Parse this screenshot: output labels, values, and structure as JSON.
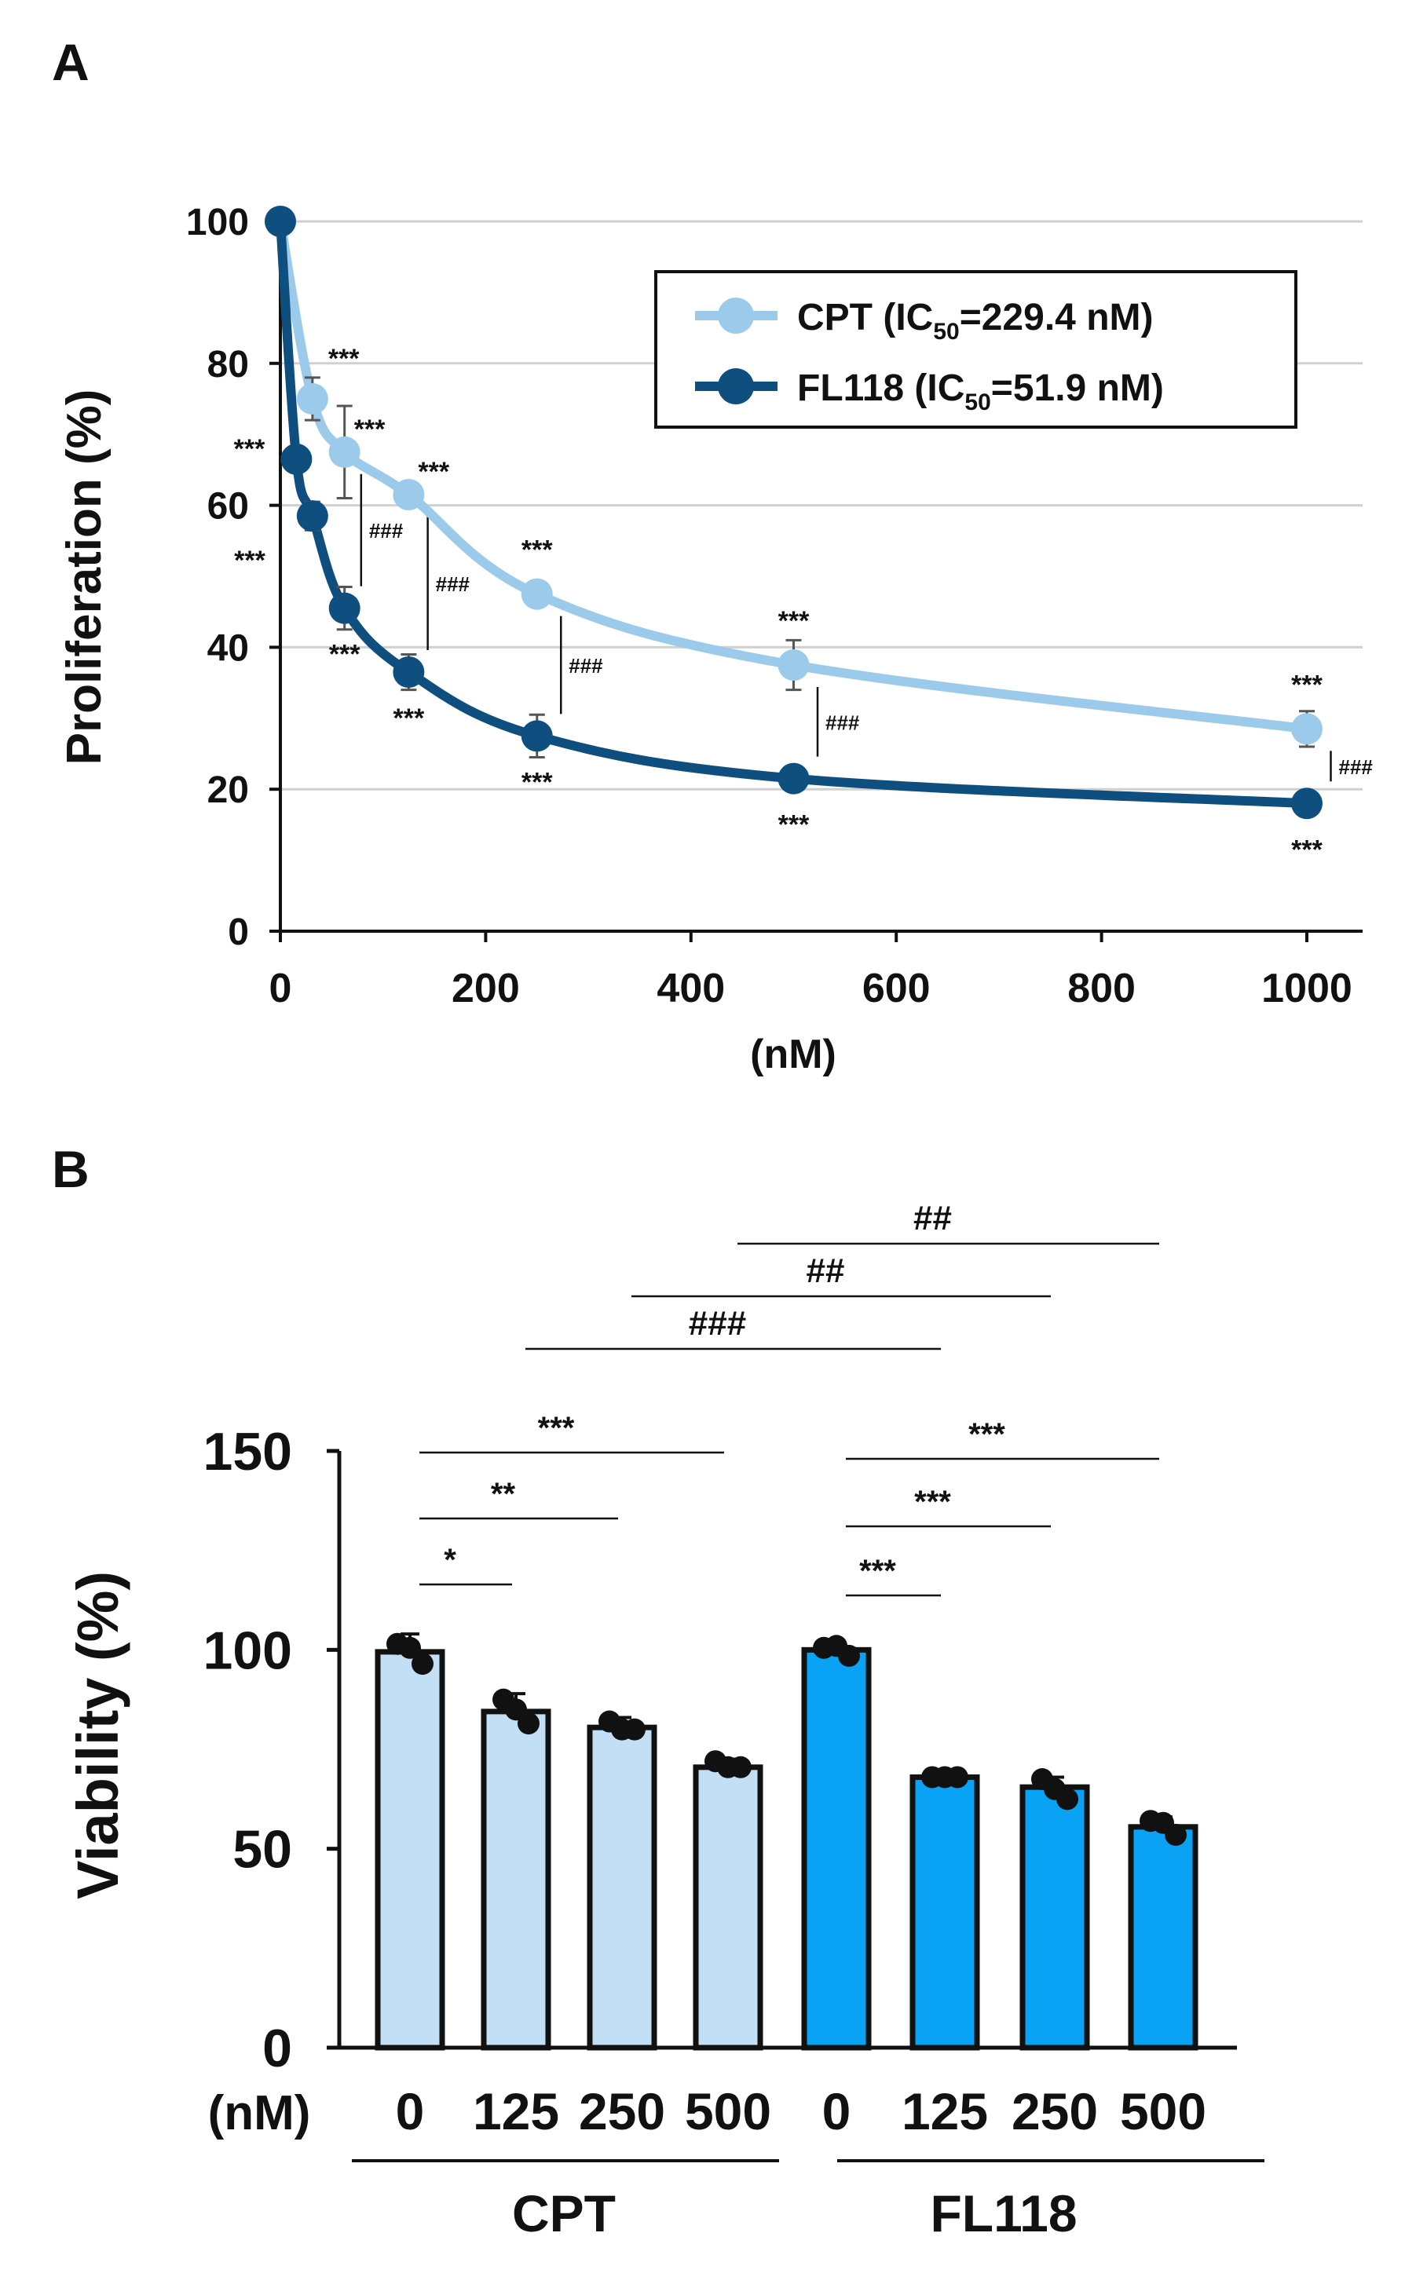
{
  "chart_data": [
    {
      "panel": "A",
      "type": "line",
      "ylabel": "Proliferation  (%)",
      "xlabel": "(nM)",
      "xlim": [
        0,
        1000
      ],
      "ylim": [
        0,
        100
      ],
      "xticks": [
        0,
        200,
        400,
        600,
        800,
        1000
      ],
      "yticks": [
        0,
        20,
        40,
        60,
        80,
        100
      ],
      "grid": true,
      "legend_position": "top-right",
      "series": [
        {
          "name": "CPT",
          "legend_name": "CPT",
          "legend_ic50": "229.4 nM",
          "color": "#9ccaea",
          "x": [
            0,
            31.25,
            62.5,
            125,
            250,
            500,
            1000
          ],
          "y": [
            100,
            75,
            67.5,
            61.5,
            47.5,
            37.5,
            28.5
          ],
          "err": [
            0,
            3,
            6.5,
            0,
            1.5,
            3.5,
            2.5
          ],
          "stars": [
            "",
            "***",
            "***",
            "***",
            "***",
            "***",
            "***"
          ]
        },
        {
          "name": "FL118",
          "legend_name": "FL118",
          "legend_ic50": "51.9 nM",
          "color": "#0f4f7f",
          "x": [
            0,
            15.6,
            31.25,
            62.5,
            125,
            250,
            500,
            1000
          ],
          "y": [
            100,
            66.5,
            58.5,
            45.5,
            36.5,
            27.5,
            21.5,
            18
          ],
          "err": [
            0,
            0,
            2,
            3,
            2.5,
            3,
            0,
            0
          ],
          "stars": [
            "",
            "***",
            "***",
            "***",
            "***",
            "***",
            "***",
            "***"
          ]
        }
      ],
      "comparison_label": "###"
    },
    {
      "panel": "B",
      "type": "bar",
      "ylabel": "Viability (%)",
      "unit_label": "(nM)",
      "ylim": [
        0,
        150
      ],
      "yticks": [
        0,
        50,
        100,
        150
      ],
      "categories": [
        "0",
        "125",
        "250",
        "500",
        "0",
        "125",
        "250",
        "500"
      ],
      "groups": [
        {
          "name": "CPT",
          "color": "#c3dff5"
        },
        {
          "name": "FL118",
          "color": "#0aa2f5"
        }
      ],
      "values": [
        99.5,
        84.5,
        80.5,
        70.5,
        100,
        68,
        65.5,
        55.5
      ],
      "err": [
        4.5,
        4.5,
        2.5,
        2,
        1.5,
        0.5,
        2.5,
        2.5
      ],
      "points": [
        [
          101.5,
          100.5,
          96.5
        ],
        [
          87.5,
          85,
          81.5
        ],
        [
          82,
          80,
          80
        ],
        [
          72,
          70.5,
          70.5
        ],
        [
          100.5,
          101,
          98.5
        ],
        [
          68,
          68,
          68
        ],
        [
          67.5,
          65,
          62.5
        ],
        [
          57,
          56.5,
          53.5
        ]
      ],
      "significance": [
        {
          "label": "*",
          "from": 0,
          "to": 1
        },
        {
          "label": "**",
          "from": 0,
          "to": 2
        },
        {
          "label": "***",
          "from": 0,
          "to": 3
        },
        {
          "label": "***",
          "from": 4,
          "to": 5
        },
        {
          "label": "***",
          "from": 4,
          "to": 6
        },
        {
          "label": "***",
          "from": 4,
          "to": 7
        },
        {
          "label": "###",
          "from": 1,
          "to": 5
        },
        {
          "label": "##",
          "from": 2,
          "to": 6
        },
        {
          "label": "##",
          "from": 3,
          "to": 7
        }
      ]
    }
  ],
  "panel_labels": [
    "A",
    "B"
  ]
}
